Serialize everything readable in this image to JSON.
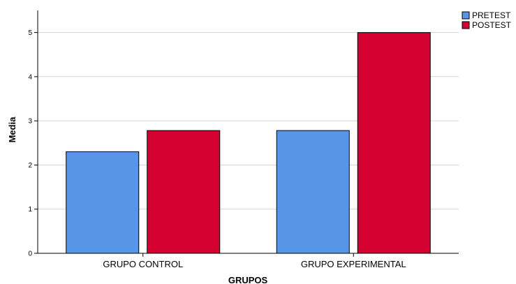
{
  "chart_data": {
    "type": "bar",
    "categories": [
      "GRUPO CONTROL",
      "GRUPO EXPERIMENTAL"
    ],
    "series": [
      {
        "name": "PRETEST",
        "values": [
          2.3,
          2.78
        ],
        "color": "#5796e6"
      },
      {
        "name": "POSTEST",
        "values": [
          2.78,
          5.0
        ],
        "color": "#d40030"
      }
    ],
    "title": "",
    "xlabel": "GRUPOS",
    "ylabel": "Media",
    "ylim": [
      0,
      5.5
    ],
    "yticks": [
      0,
      1,
      2,
      3,
      4,
      5
    ],
    "grid": true,
    "legend": "top-right"
  }
}
